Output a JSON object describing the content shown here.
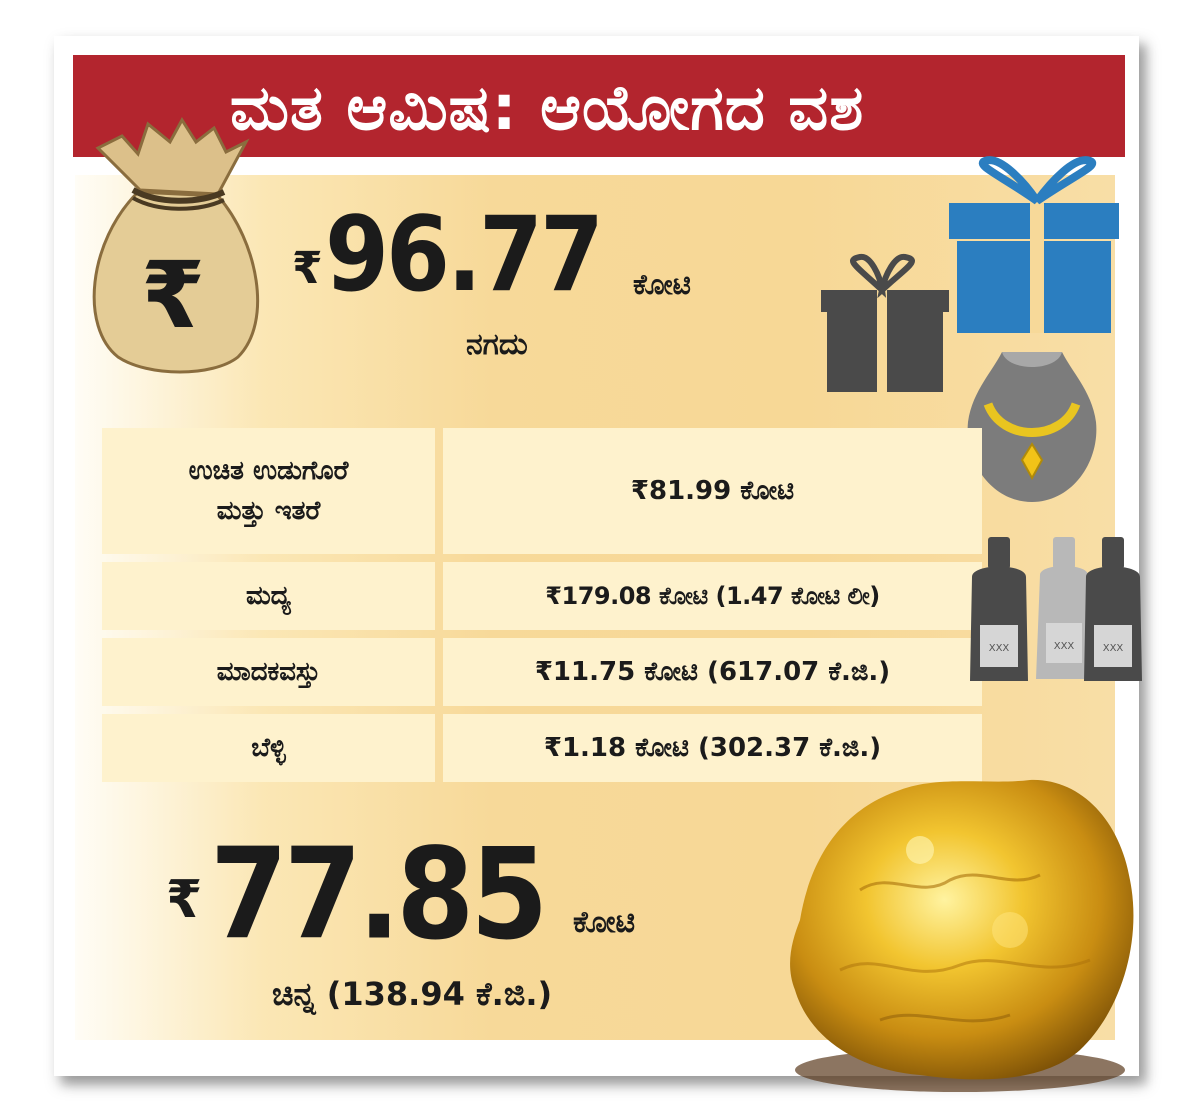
{
  "header": {
    "title": "ಮತ ಆಮಿಷ: ಆಯೋಗದ ವಶ"
  },
  "cash": {
    "currency": "₹",
    "amount": "96.77",
    "unit": "ಕೋಟಿ",
    "label": "ನಗದು"
  },
  "seizures": [
    {
      "item": "ಉಚಿತ ಉಡುಗೊರೆ\nಮತ್ತು ಇತರೆ",
      "value": "₹81.99 ಕೋಟಿ"
    },
    {
      "item": "ಮದ್ಯ",
      "value": "₹179.08 ಕೋಟಿ (1.47 ಕೋಟಿ ಲೀ)"
    },
    {
      "item": "ಮಾದಕವಸ್ತು",
      "value": "₹11.75 ಕೋಟಿ (617.07 ಕೆ.ಜಿ.)"
    },
    {
      "item": "ಬೆಳ್ಳಿ",
      "value": "₹1.18 ಕೋಟಿ (302.37 ಕೆ.ಜಿ.)"
    }
  ],
  "gold": {
    "currency": "₹",
    "amount": "77.85",
    "unit": "ಕೋಟಿ",
    "label": "ಚಿನ್ನ (138.94 ಕೆ.ಜಿ.)"
  },
  "icons": {
    "money_bag": "money-bag-icon",
    "gifts": "gift-boxes-icon",
    "necklace": "necklace-icon",
    "bottles": "liquor-bottles-icon",
    "gold": "gold-nugget-icon"
  },
  "bottle_label": "XXX",
  "colors": {
    "header": "#b3252e",
    "panel": "#f7d999",
    "cell": "#fef2cd",
    "gift_blue": "#2b7ec0",
    "gift_gray": "#4a4a4a",
    "gold": "#e1a91c"
  }
}
